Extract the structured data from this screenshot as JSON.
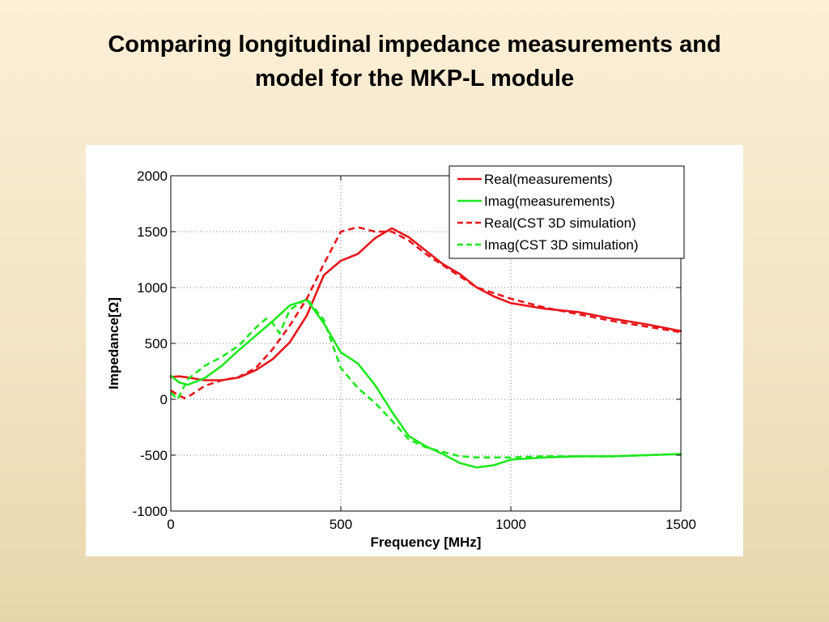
{
  "slide": {
    "title_line1": "Comparing longitudinal impedance measurements and",
    "title_line2": "model for the MKP-L module"
  },
  "colors": {
    "real": "#e8151b",
    "imag": "#1ee81e",
    "background_top": "#fcefd6",
    "background_bottom": "#e8d6ab"
  },
  "chart_data": {
    "type": "line",
    "title": "",
    "xlabel": "Frequency [MHz]",
    "ylabel": "Impedance[Ω]",
    "xlim": [
      0,
      1500
    ],
    "ylim": [
      -1000,
      2000
    ],
    "xticks": [
      0,
      500,
      1000,
      1500
    ],
    "yticks": [
      -1000,
      -500,
      0,
      500,
      1000,
      1500,
      2000
    ],
    "grid": true,
    "legend_position": "top-right",
    "series": [
      {
        "name": "Real(measurements)",
        "color": "#e8151b",
        "style": "solid",
        "x": [
          0,
          25,
          50,
          100,
          150,
          200,
          250,
          300,
          350,
          400,
          450,
          500,
          550,
          600,
          650,
          700,
          750,
          800,
          850,
          900,
          950,
          1000,
          1100,
          1200,
          1300,
          1400,
          1500
        ],
        "y": [
          200,
          205,
          195,
          170,
          170,
          195,
          260,
          360,
          510,
          750,
          1110,
          1240,
          1300,
          1440,
          1530,
          1450,
          1330,
          1210,
          1120,
          1000,
          920,
          860,
          810,
          780,
          720,
          670,
          610
        ]
      },
      {
        "name": "Imag(measurements)",
        "color": "#1ee81e",
        "style": "solid",
        "x": [
          0,
          25,
          50,
          100,
          150,
          200,
          250,
          300,
          350,
          400,
          450,
          500,
          550,
          600,
          650,
          700,
          750,
          800,
          850,
          900,
          950,
          1000,
          1100,
          1200,
          1300,
          1400,
          1500
        ],
        "y": [
          210,
          150,
          130,
          190,
          300,
          440,
          570,
          700,
          840,
          890,
          680,
          420,
          320,
          130,
          -110,
          -330,
          -420,
          -490,
          -570,
          -610,
          -590,
          -540,
          -520,
          -510,
          -510,
          -500,
          -490
        ]
      },
      {
        "name": "Real(CST 3D simulation)",
        "color": "#e8151b",
        "style": "dashed",
        "x": [
          0,
          20,
          40,
          60,
          100,
          150,
          200,
          250,
          300,
          350,
          400,
          450,
          500,
          550,
          600,
          650,
          700,
          750,
          800,
          850,
          900,
          1000,
          1100,
          1200,
          1300,
          1400,
          1500
        ],
        "y": [
          80,
          40,
          10,
          40,
          120,
          170,
          200,
          280,
          450,
          660,
          900,
          1210,
          1500,
          1540,
          1500,
          1500,
          1420,
          1300,
          1200,
          1100,
          1000,
          900,
          820,
          760,
          700,
          650,
          600
        ]
      },
      {
        "name": "Imag(CST 3D simulation)",
        "color": "#1ee81e",
        "style": "dashed",
        "x": [
          0,
          20,
          50,
          100,
          150,
          200,
          250,
          280,
          300,
          320,
          350,
          400,
          450,
          500,
          550,
          600,
          650,
          700,
          750,
          800,
          850,
          900,
          950,
          1000,
          1100,
          1200,
          1300,
          1400,
          1500
        ],
        "y": [
          60,
          0,
          180,
          300,
          380,
          480,
          640,
          720,
          680,
          590,
          800,
          900,
          710,
          280,
          100,
          -30,
          -190,
          -360,
          -430,
          -470,
          -510,
          -520,
          -520,
          -520,
          -510,
          -510,
          -510,
          -500,
          -490
        ]
      }
    ]
  }
}
